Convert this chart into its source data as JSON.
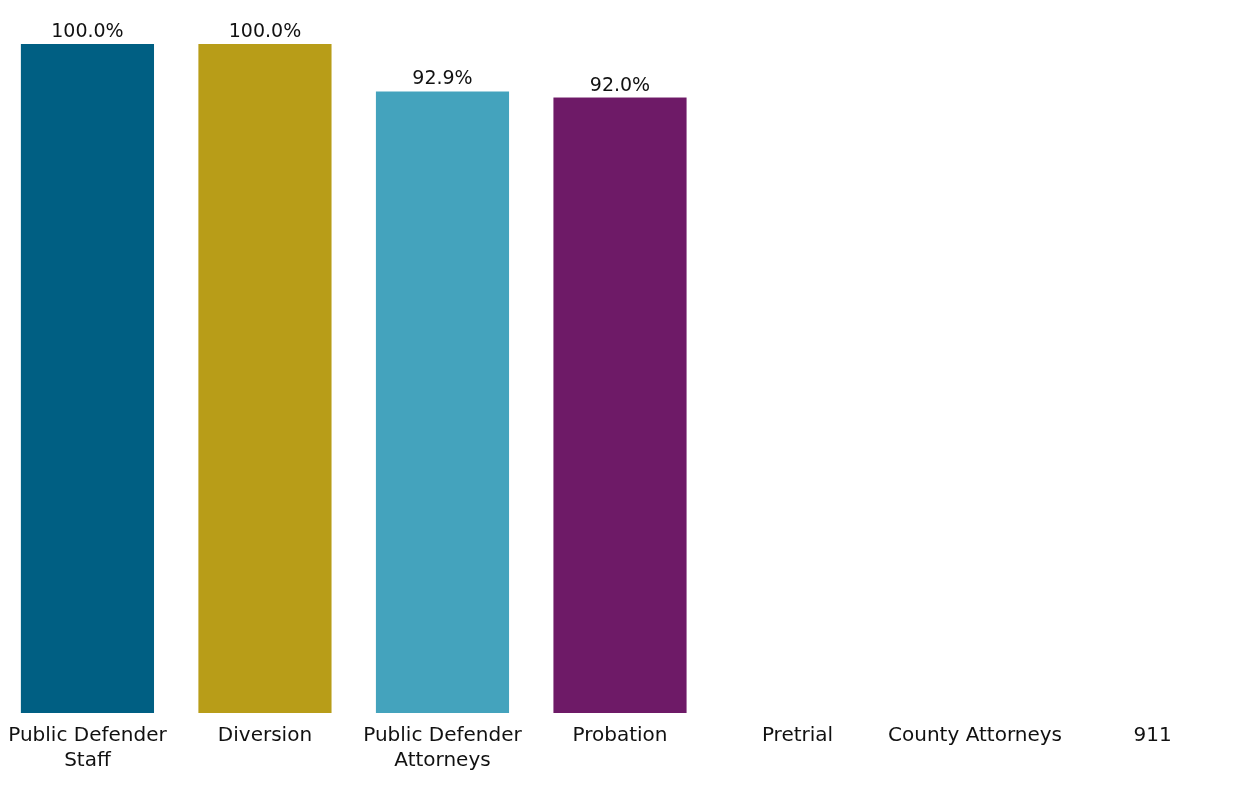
{
  "chart_data": {
    "type": "bar",
    "categories": [
      "Public Defender Staff",
      "Diversion",
      "Public Defender Attorneys",
      "Probation",
      "Pretrial",
      "County Attorneys",
      "911"
    ],
    "values": [
      100,
      100,
      92.9,
      92.0,
      null,
      null,
      null
    ],
    "value_labels": [
      "100.0%",
      "100.0%",
      "92.9%",
      "92.0%",
      null,
      null,
      null
    ],
    "colors": [
      "#005f83",
      "#b89d18",
      "#44a3bd",
      "#6e1a67",
      null,
      null,
      null
    ]
  }
}
